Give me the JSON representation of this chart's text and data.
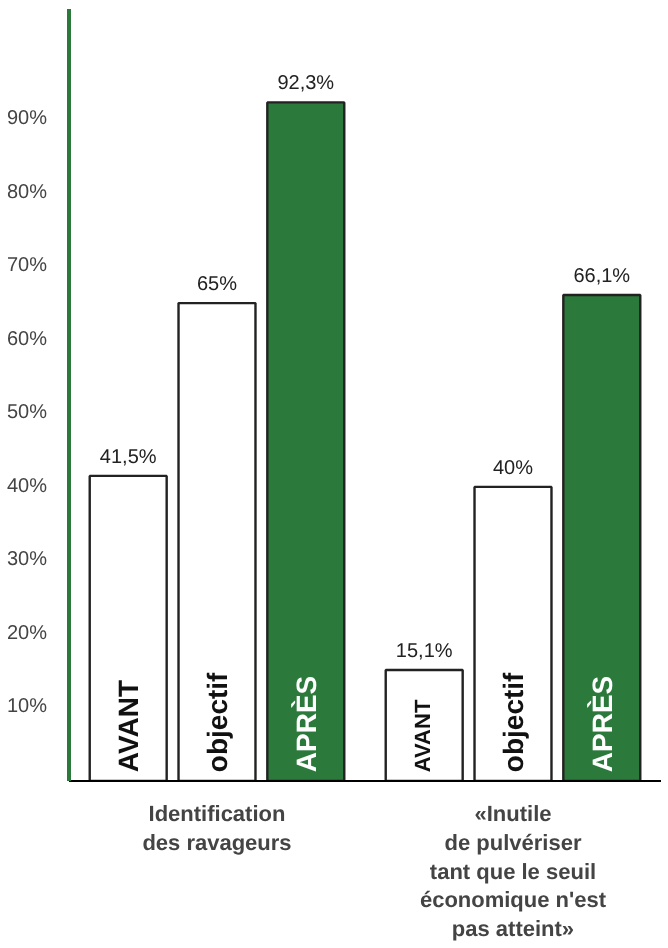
{
  "chart_data": {
    "type": "bar",
    "categories": [
      "Identification\ndes ravageurs",
      "«Inutile\nde pulvériser\ntant que le seuil\néconomique n'est\npas atteint»"
    ],
    "series": [
      {
        "name": "AVANT",
        "color": "#ffffff",
        "values": [
          41.5,
          15.1
        ],
        "value_labels": [
          "41,5%",
          "15,1%"
        ]
      },
      {
        "name": "objectif",
        "color": "#ffffff",
        "values": [
          65,
          40
        ],
        "value_labels": [
          "65%",
          "40%"
        ]
      },
      {
        "name": "APRÈS",
        "color": "#2b7a3b",
        "values": [
          92.3,
          66.1
        ],
        "value_labels": [
          "92,3%",
          "66,1%"
        ]
      }
    ],
    "ylim": [
      0,
      105
    ],
    "yticks": [
      {
        "value": 10,
        "label": "10%"
      },
      {
        "value": 20,
        "label": "20%"
      },
      {
        "value": 30,
        "label": "30%"
      },
      {
        "value": 40,
        "label": "40%"
      },
      {
        "value": 50,
        "label": "50%"
      },
      {
        "value": 60,
        "label": "60%"
      },
      {
        "value": 70,
        "label": "70%"
      },
      {
        "value": 80,
        "label": "80%"
      },
      {
        "value": 90,
        "label": "90%"
      }
    ],
    "grid": false
  }
}
